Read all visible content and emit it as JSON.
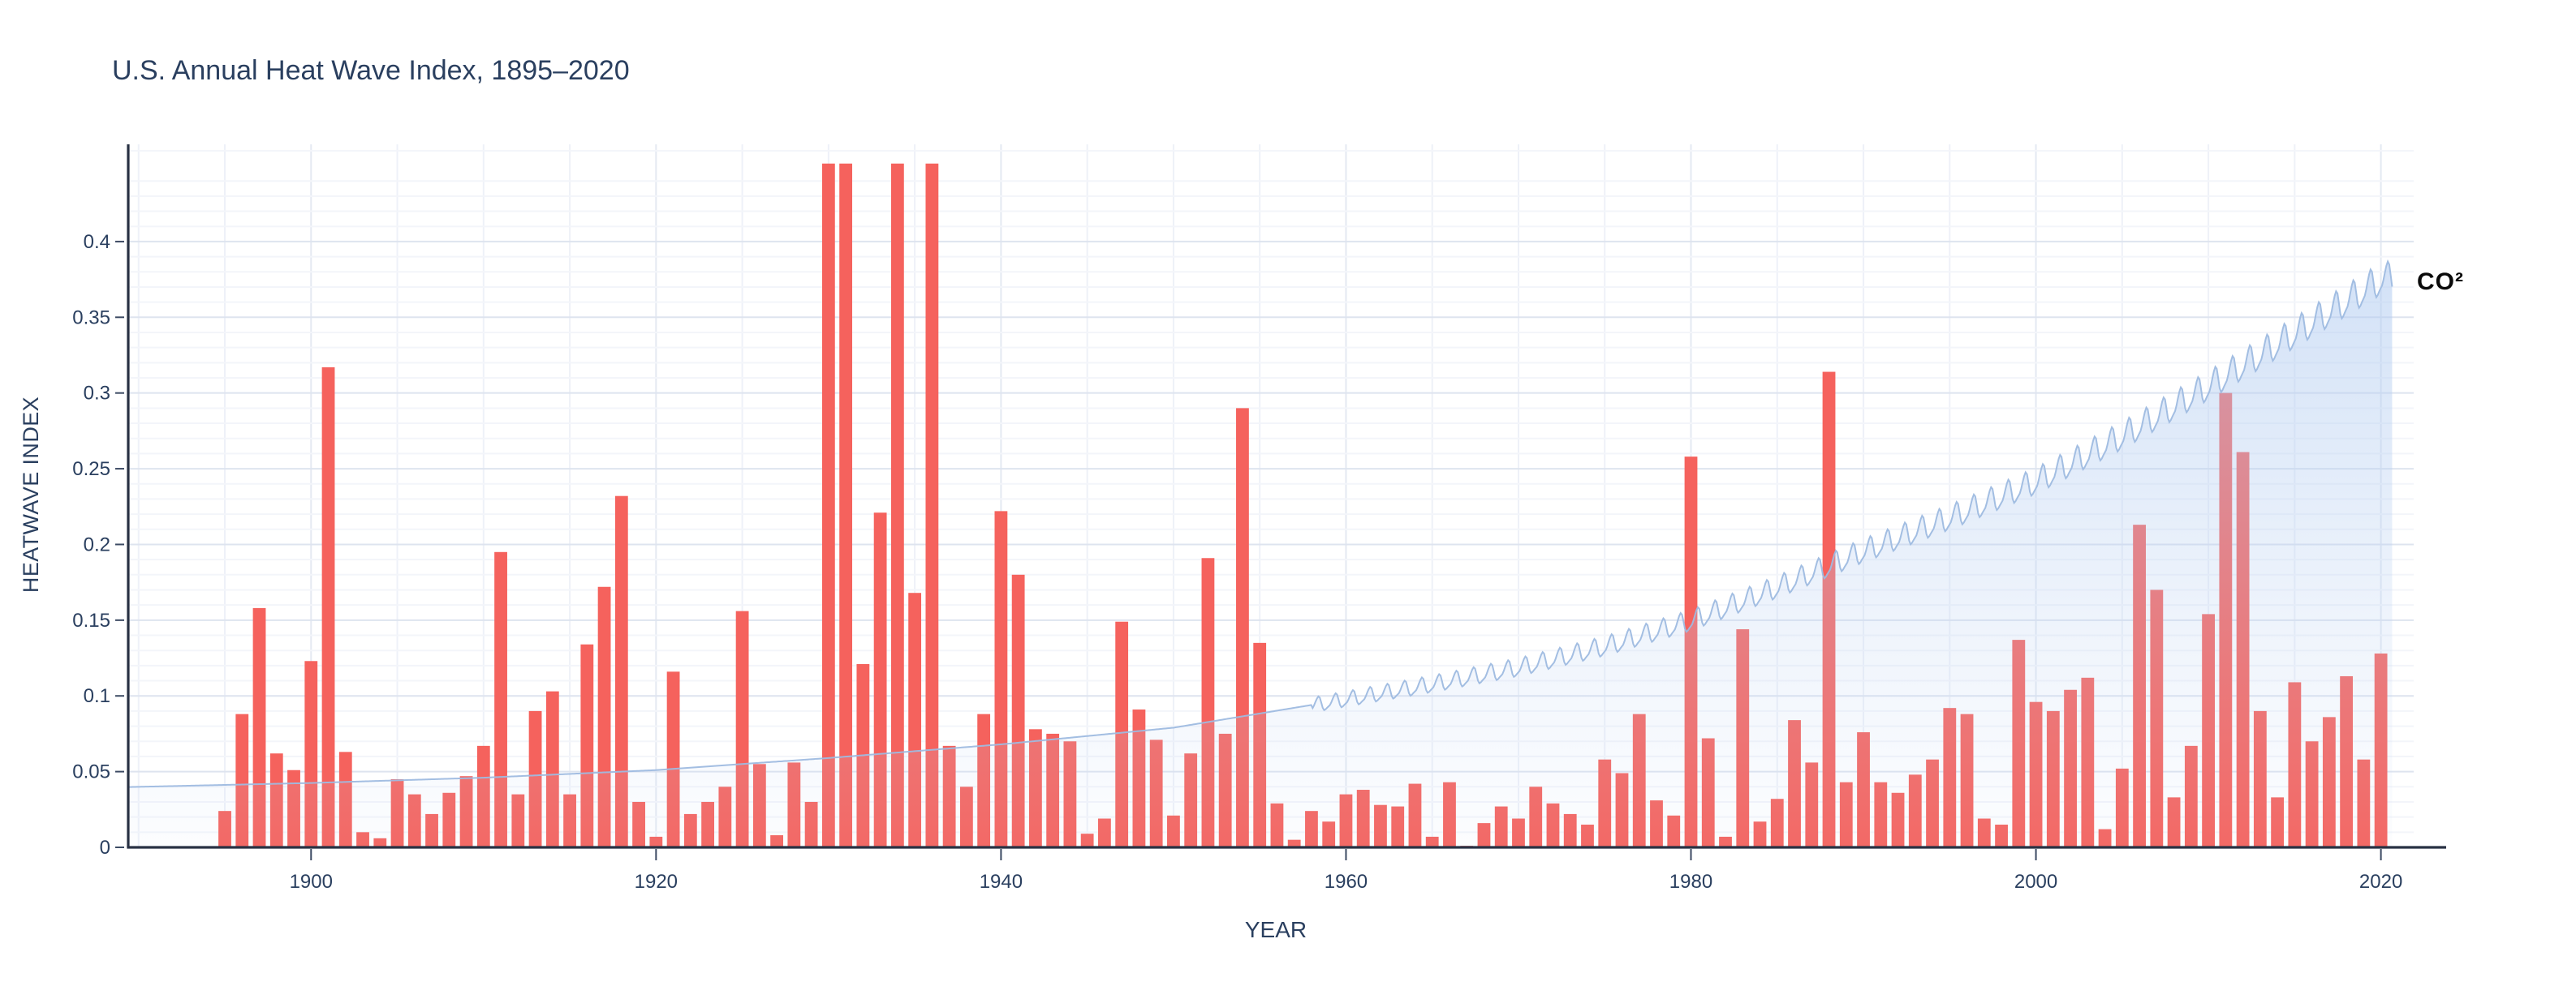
{
  "figure": {
    "title": "U.S. Annual Heat Wave Index, 1895–2020",
    "x_axis_title": "YEAR",
    "y_axis_title": "HEATWAVE INDEX",
    "co2_annotation": "CO²"
  },
  "colors": {
    "background": "#ffffff",
    "bar": "#f5625d",
    "bar_muted_under_area": "#d96a67",
    "axis_line": "#283143",
    "tick_mark": "#3c4a63",
    "tick_label": "#2a3f5f",
    "title_text": "#2a3f5f",
    "grid_major": "#dee4ef",
    "grid_minor": "#f3f5fa",
    "grid_vertical": "#eef1f8",
    "grid_vertical_decade": "#e4e9f2",
    "co2_line": "#9ebbe0",
    "co2_fill_top": "rgba(173,201,240,0.65)",
    "co2_fill_mid": "rgba(183,207,241,0.32)",
    "co2_fill_bottom": "rgba(203,220,246,0.06)",
    "annotation_text": "#0a0a0a"
  },
  "chart_data": {
    "type": "bar",
    "title": "U.S. Annual Heat Wave Index, 1895–2020",
    "xlabel": "YEAR",
    "ylabel": "HEATWAVE INDEX",
    "grid": true,
    "legend_position": "none",
    "x_tick_labels": [
      "1900",
      "1920",
      "1940",
      "1960",
      "1980",
      "2000",
      "2020"
    ],
    "x_tick_values": [
      1900,
      1920,
      1940,
      1960,
      1980,
      2000,
      2020
    ],
    "y_tick_labels": [
      "0",
      "0.05",
      "0.1",
      "0.15",
      "0.2",
      "0.25",
      "0.3",
      "0.35",
      "0.4"
    ],
    "y_tick_values": [
      0,
      0.05,
      0.1,
      0.15,
      0.2,
      0.25,
      0.3,
      0.35,
      0.4
    ],
    "x_range": [
      1889.4,
      2021.9
    ],
    "y_range": [
      0,
      0.4642
    ],
    "bar_clip_value": 0.4515,
    "minor_y_grid_step": 0.01,
    "vertical_grid_step_years": 5,
    "series_name": "heat-wave-index",
    "year_start": 1895,
    "year_end": 2020,
    "clipped_years": [
      1930,
      1931,
      1934,
      1936
    ],
    "clipped_note": "Bars for 1930, 1931, 1934 and 1936 exceed the visible axis range and are clipped flat at the top of the plot.",
    "values": [
      0.024,
      0.088,
      0.158,
      0.062,
      0.051,
      0.123,
      0.317,
      0.063,
      0.01,
      0.006,
      0.045,
      0.035,
      0.022,
      0.036,
      0.047,
      0.067,
      0.195,
      0.035,
      0.09,
      0.103,
      0.035,
      0.134,
      0.172,
      0.232,
      0.03,
      0.007,
      0.116,
      0.022,
      0.03,
      0.04,
      0.156,
      0.055,
      0.008,
      0.056,
      0.03,
      null,
      null,
      0.121,
      0.221,
      null,
      0.168,
      null,
      0.067,
      0.04,
      0.088,
      0.222,
      0.18,
      0.078,
      0.075,
      0.07,
      0.009,
      0.019,
      0.149,
      0.091,
      0.071,
      0.021,
      0.062,
      0.191,
      0.075,
      0.29,
      0.135,
      0.029,
      0.005,
      0.024,
      0.017,
      0.035,
      0.038,
      0.028,
      0.027,
      0.042,
      0.007,
      0.043,
      0.001,
      0.016,
      0.027,
      0.019,
      0.04,
      0.029,
      0.022,
      0.015,
      0.058,
      0.049,
      0.088,
      0.031,
      0.021,
      0.258,
      0.072,
      0.007,
      0.144,
      0.017,
      0.032,
      0.084,
      0.056,
      0.314,
      0.043,
      0.076,
      0.043,
      0.036,
      0.048,
      0.058,
      0.092,
      0.088,
      0.019,
      0.015,
      0.137,
      0.096,
      0.09,
      0.104,
      0.112,
      0.012,
      0.052,
      0.213,
      0.17,
      0.033,
      0.067,
      0.154,
      0.3,
      0.261,
      0.09,
      0.033,
      0.109,
      0.07,
      0.086,
      0.113,
      0.058,
      0.128
    ],
    "overlay_series": {
      "name": "co2-concentration",
      "type": "area",
      "label": "CO²",
      "drawn_over_bars": true,
      "x_start": 1889.4,
      "x_end": 2020.65,
      "seasonal_cycle_start_year": 1958,
      "seasonal_amplitude_start": 0.0048,
      "seasonal_amplitude_growth_per_year": 9e-05,
      "anchors_year_value": [
        [
          1889.4,
          0.0398
        ],
        [
          1900,
          0.0425
        ],
        [
          1910,
          0.046
        ],
        [
          1920,
          0.051
        ],
        [
          1930,
          0.059
        ],
        [
          1940,
          0.068
        ],
        [
          1950,
          0.079
        ],
        [
          1958,
          0.094
        ],
        [
          1965,
          0.108
        ],
        [
          1970,
          0.119
        ],
        [
          1975,
          0.133
        ],
        [
          1980,
          0.15
        ],
        [
          1985,
          0.172
        ],
        [
          1990,
          0.196
        ],
        [
          1995,
          0.218
        ],
        [
          2000,
          0.242
        ],
        [
          2005,
          0.272
        ],
        [
          2010,
          0.305
        ],
        [
          2015,
          0.34
        ],
        [
          2020,
          0.3755
        ],
        [
          2020.65,
          0.377
        ]
      ]
    }
  }
}
